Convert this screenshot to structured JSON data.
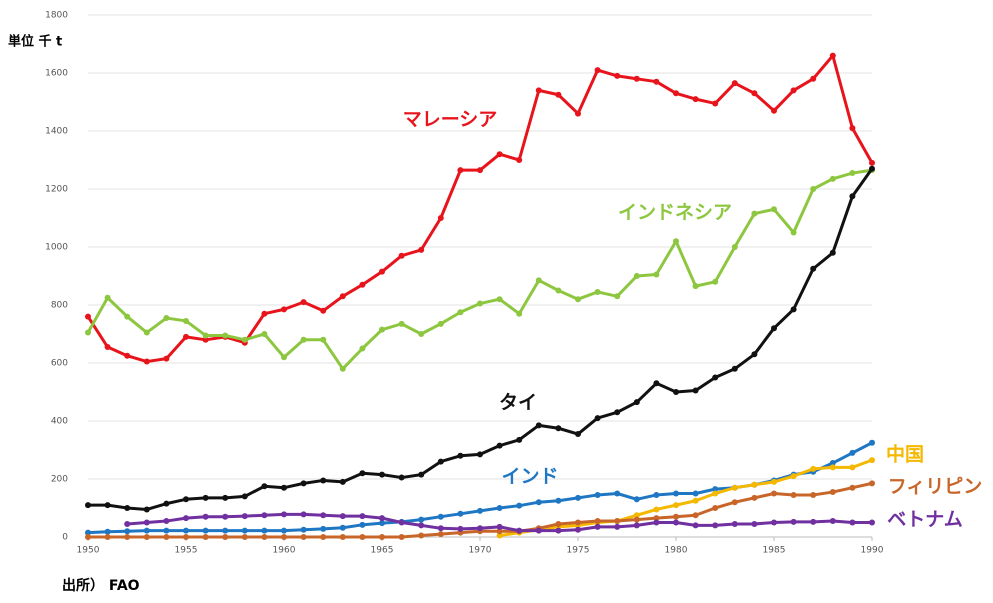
{
  "chart_data": {
    "type": "line",
    "y_label": "単位 千 t",
    "source": "出所） FAO",
    "x": [
      1950,
      1951,
      1952,
      1953,
      1954,
      1955,
      1956,
      1957,
      1958,
      1959,
      1960,
      1961,
      1962,
      1963,
      1964,
      1965,
      1966,
      1967,
      1968,
      1969,
      1970,
      1971,
      1972,
      1973,
      1974,
      1975,
      1976,
      1977,
      1978,
      1979,
      1980,
      1981,
      1982,
      1983,
      1984,
      1985,
      1986,
      1987,
      1988,
      1989,
      1990
    ],
    "xlim": [
      1950,
      1990
    ],
    "xticks": [
      1950,
      1955,
      1960,
      1965,
      1970,
      1975,
      1980,
      1985,
      1990
    ],
    "ylim": [
      0,
      1800
    ],
    "yticks": [
      0,
      200,
      400,
      600,
      800,
      1000,
      1200,
      1400,
      1600,
      1800
    ],
    "grid": true,
    "series": [
      {
        "name": "マレーシア",
        "color": "#e8141c",
        "values": [
          760,
          655,
          625,
          605,
          615,
          690,
          680,
          690,
          670,
          770,
          785,
          810,
          780,
          830,
          870,
          915,
          970,
          990,
          1100,
          1265,
          1265,
          1320,
          1300,
          1540,
          1525,
          1460,
          1610,
          1590,
          1580,
          1570,
          1530,
          1510,
          1495,
          1565,
          1530,
          1470,
          1540,
          1580,
          1660,
          1410,
          1290
        ]
      },
      {
        "name": "インドネシア",
        "color": "#8dc63f",
        "values": [
          705,
          825,
          760,
          705,
          755,
          745,
          695,
          695,
          680,
          700,
          620,
          680,
          680,
          580,
          650,
          715,
          735,
          700,
          735,
          775,
          805,
          820,
          770,
          885,
          850,
          820,
          845,
          830,
          900,
          905,
          1020,
          865,
          880,
          1000,
          1115,
          1130,
          1050,
          1200,
          1235,
          1255,
          1265
        ]
      },
      {
        "name": "タイ",
        "color": "#111111",
        "values": [
          110,
          110,
          100,
          95,
          115,
          130,
          135,
          135,
          140,
          175,
          170,
          185,
          195,
          190,
          220,
          215,
          205,
          215,
          260,
          280,
          285,
          315,
          335,
          385,
          375,
          355,
          410,
          430,
          465,
          530,
          500,
          505,
          550,
          580,
          630,
          720,
          785,
          925,
          980,
          1175,
          1270
        ]
      },
      {
        "name": "インド",
        "color": "#1f77c4",
        "values": [
          15,
          18,
          20,
          22,
          22,
          22,
          22,
          22,
          22,
          22,
          22,
          25,
          28,
          32,
          42,
          48,
          52,
          60,
          70,
          80,
          90,
          100,
          108,
          120,
          125,
          135,
          145,
          150,
          130,
          145,
          150,
          150,
          165,
          170,
          180,
          195,
          215,
          225,
          255,
          290,
          325
        ]
      },
      {
        "name": "中国",
        "color": "#f5b800",
        "values": [
          null,
          null,
          null,
          null,
          null,
          null,
          null,
          null,
          null,
          null,
          null,
          null,
          null,
          null,
          null,
          null,
          null,
          null,
          null,
          null,
          null,
          5,
          15,
          25,
          35,
          40,
          50,
          55,
          75,
          95,
          110,
          125,
          150,
          170,
          180,
          190,
          210,
          235,
          240,
          240,
          265
        ]
      },
      {
        "name": "フィリピン",
        "color": "#c8662a",
        "values": [
          0,
          0,
          0,
          0,
          0,
          0,
          0,
          0,
          0,
          0,
          0,
          0,
          0,
          0,
          0,
          0,
          0,
          5,
          10,
          15,
          20,
          20,
          20,
          30,
          45,
          50,
          55,
          55,
          60,
          65,
          70,
          75,
          100,
          120,
          135,
          150,
          145,
          145,
          155,
          170,
          185
        ]
      },
      {
        "name": "ベトナム",
        "color": "#7030a0",
        "values": [
          null,
          null,
          45,
          50,
          55,
          65,
          70,
          70,
          72,
          75,
          78,
          78,
          75,
          72,
          72,
          65,
          50,
          40,
          30,
          28,
          30,
          35,
          22,
          22,
          22,
          25,
          35,
          35,
          40,
          50,
          50,
          40,
          40,
          45,
          45,
          50,
          52,
          52,
          55,
          50,
          50
        ]
      }
    ]
  }
}
